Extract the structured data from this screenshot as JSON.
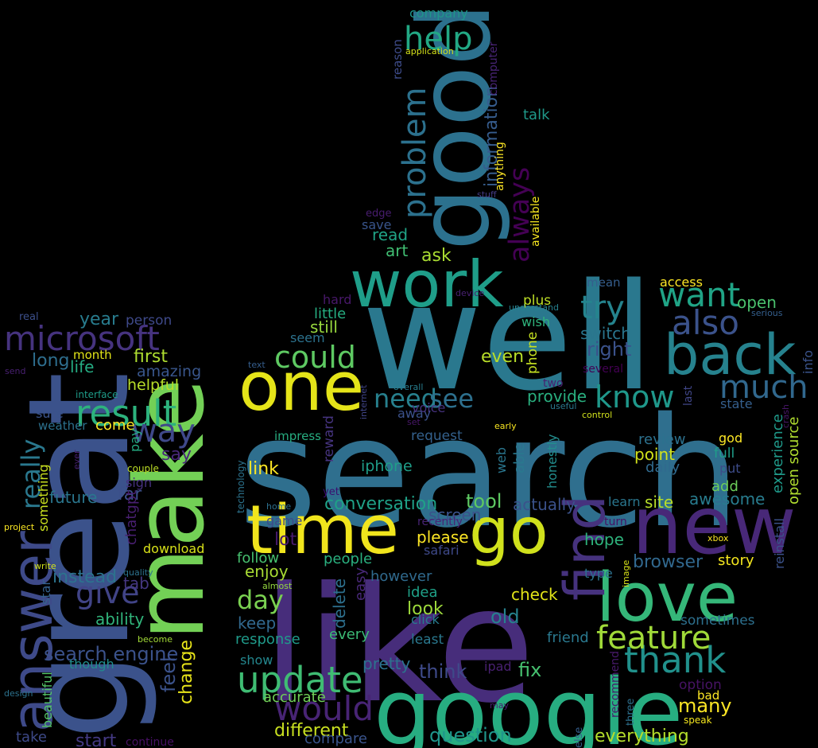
{
  "words": [
    {
      "text": "search",
      "color": "#2f6f8e"
    },
    {
      "text": "well",
      "color": "#2a788e"
    },
    {
      "text": "like",
      "color": "#472d7b"
    },
    {
      "text": "great",
      "color": "#3b528b"
    },
    {
      "text": "good",
      "color": "#2c718e"
    },
    {
      "text": "google",
      "color": "#27ad81"
    },
    {
      "text": "new",
      "color": "#482878"
    },
    {
      "text": "make",
      "color": "#73d056"
    },
    {
      "text": "time",
      "color": "#f1e51d"
    },
    {
      "text": "one",
      "color": "#e5e419"
    },
    {
      "text": "work",
      "color": "#1f9e89"
    },
    {
      "text": "love",
      "color": "#35b779"
    },
    {
      "text": "back",
      "color": "#26828e"
    },
    {
      "text": "answer",
      "color": "#3e4a89"
    },
    {
      "text": "go",
      "color": "#d0e11c"
    },
    {
      "text": "find",
      "color": "#46327e"
    },
    {
      "text": "microsoft",
      "color": "#46337f"
    },
    {
      "text": "result",
      "color": "#2db27d"
    },
    {
      "text": "update",
      "color": "#3fbc73"
    },
    {
      "text": "thank",
      "color": "#21918c"
    },
    {
      "text": "feature",
      "color": "#a0da39"
    },
    {
      "text": "would",
      "color": "#482475"
    },
    {
      "text": "help",
      "color": "#22a884"
    },
    {
      "text": "try",
      "color": "#25848e"
    },
    {
      "text": "want",
      "color": "#20a486"
    },
    {
      "text": "also",
      "color": "#3b528b"
    },
    {
      "text": "could",
      "color": "#5ec962"
    },
    {
      "text": "know",
      "color": "#1f988b"
    },
    {
      "text": "much",
      "color": "#31688e"
    },
    {
      "text": "way",
      "color": "#3f4889"
    },
    {
      "text": "give",
      "color": "#414487"
    },
    {
      "text": "really",
      "color": "#2a788e"
    },
    {
      "text": "problem",
      "color": "#2c718e"
    },
    {
      "text": "always",
      "color": "#440154"
    },
    {
      "text": "need",
      "color": "#27808e"
    },
    {
      "text": "see",
      "color": "#2d708e"
    },
    {
      "text": "day",
      "color": "#7ad151"
    },
    {
      "text": "search engine",
      "color": "#3b528b"
    },
    {
      "text": "information",
      "color": "#365c8d"
    },
    {
      "text": "conversation",
      "color": "#1fa187"
    },
    {
      "text": "question",
      "color": "#1f968b"
    },
    {
      "text": "different",
      "color": "#c8e020"
    },
    {
      "text": "many",
      "color": "#fde725"
    },
    {
      "text": "everything",
      "color": "#b5de2b"
    },
    {
      "text": "year",
      "color": "#287c8e"
    },
    {
      "text": "first",
      "color": "#addc30"
    },
    {
      "text": "long",
      "color": "#2e6e8e"
    },
    {
      "text": "life",
      "color": "#25ab82"
    },
    {
      "text": "amazing",
      "color": "#39568c"
    },
    {
      "text": "helpful",
      "color": "#b8de29"
    },
    {
      "text": "person",
      "color": "#3e4989"
    },
    {
      "text": "month",
      "color": "#e2e418"
    },
    {
      "text": "say",
      "color": "#482878"
    },
    {
      "text": "far",
      "color": "#3c508b"
    },
    {
      "text": "come",
      "color": "#fde725"
    },
    {
      "text": "instead",
      "color": "#2c738e"
    },
    {
      "text": "tab",
      "color": "#453781"
    },
    {
      "text": "ability",
      "color": "#31b57b"
    },
    {
      "text": "future",
      "color": "#2a768e"
    },
    {
      "text": "download",
      "color": "#d8e219"
    },
    {
      "text": "chatgpt",
      "color": "#481f70"
    },
    {
      "text": "feel",
      "color": "#3b528b"
    },
    {
      "text": "change",
      "color": "#e7e419"
    },
    {
      "text": "start",
      "color": "#443983"
    },
    {
      "text": "take",
      "color": "#3e4a89"
    },
    {
      "text": "though",
      "color": "#228c8d"
    },
    {
      "text": "beautiful",
      "color": "#54c568"
    },
    {
      "text": "something",
      "color": "#cae11f"
    },
    {
      "text": "sure",
      "color": "#3a538b"
    },
    {
      "text": "weather",
      "color": "#2c718e"
    },
    {
      "text": "star",
      "color": "#34618d"
    },
    {
      "text": "sign",
      "color": "#46307e"
    },
    {
      "text": "pay",
      "color": "#25ac82"
    },
    {
      "text": "continue",
      "color": "#471063"
    },
    {
      "text": "real",
      "color": "#3c4f8a"
    },
    {
      "text": "send",
      "color": "#482071"
    },
    {
      "text": "interface",
      "color": "#1e9c89"
    },
    {
      "text": "couple",
      "color": "#bddf26"
    },
    {
      "text": "quality",
      "color": "#2c738e"
    },
    {
      "text": "become",
      "color": "#a2da37"
    },
    {
      "text": "project",
      "color": "#fbe723"
    },
    {
      "text": "design",
      "color": "#2c728e"
    },
    {
      "text": "write",
      "color": "#d2e21b"
    },
    {
      "text": "ever",
      "color": "#482173"
    },
    {
      "text": "company",
      "color": "#1f968b"
    },
    {
      "text": "application",
      "color": "#d5e21a"
    },
    {
      "text": "reason",
      "color": "#3e4c8a"
    },
    {
      "text": "computer",
      "color": "#482475"
    },
    {
      "text": "talk",
      "color": "#1f998a"
    },
    {
      "text": "anything",
      "color": "#fde725"
    },
    {
      "text": "available",
      "color": "#f6e620"
    },
    {
      "text": "stuff",
      "color": "#443b84"
    },
    {
      "text": "edge",
      "color": "#481d6f"
    },
    {
      "text": "save",
      "color": "#39558c"
    },
    {
      "text": "read",
      "color": "#20a486"
    },
    {
      "text": "art",
      "color": "#40bd72"
    },
    {
      "text": "ask",
      "color": "#aadc32"
    },
    {
      "text": "hard",
      "color": "#48186a"
    },
    {
      "text": "little",
      "color": "#26ad81"
    },
    {
      "text": "still",
      "color": "#98d83e"
    },
    {
      "text": "seem",
      "color": "#2c728e"
    },
    {
      "text": "plus",
      "color": "#bddf26"
    },
    {
      "text": "wish",
      "color": "#2eb37c"
    },
    {
      "text": "device",
      "color": "#482071"
    },
    {
      "text": "mean",
      "color": "#355e8d"
    },
    {
      "text": "access",
      "color": "#fde725"
    },
    {
      "text": "understand",
      "color": "#26828e"
    },
    {
      "text": "open",
      "color": "#4ac16d"
    },
    {
      "text": "serious",
      "color": "#355f8d"
    },
    {
      "text": "switch",
      "color": "#2a768e"
    },
    {
      "text": "right",
      "color": "#3b528b"
    },
    {
      "text": "even",
      "color": "#b8de29"
    },
    {
      "text": "phone",
      "color": "#c5e021"
    },
    {
      "text": "info",
      "color": "#3a538b"
    },
    {
      "text": "several",
      "color": "#440154"
    },
    {
      "text": "last",
      "color": "#404688"
    },
    {
      "text": "two",
      "color": "#482071"
    },
    {
      "text": "useful",
      "color": "#2a788e"
    },
    {
      "text": "provide",
      "color": "#29af7f"
    },
    {
      "text": "state",
      "color": "#355f8d"
    },
    {
      "text": "experience",
      "color": "#1f9a8a"
    },
    {
      "text": "crash",
      "color": "#481668"
    },
    {
      "text": "control",
      "color": "#d0e11c"
    },
    {
      "text": "early",
      "color": "#f8e621"
    },
    {
      "text": "overall",
      "color": "#287d8e"
    },
    {
      "text": "internet",
      "color": "#404588"
    },
    {
      "text": "away",
      "color": "#3b528b"
    },
    {
      "text": "set",
      "color": "#481769"
    },
    {
      "text": "review",
      "color": "#2c718e"
    },
    {
      "text": "god",
      "color": "#fde725"
    },
    {
      "text": "full",
      "color": "#1f9e89"
    },
    {
      "text": "point",
      "color": "#d2e21b"
    },
    {
      "text": "daily",
      "color": "#306a8e"
    },
    {
      "text": "put",
      "color": "#3e4c8a"
    },
    {
      "text": "add",
      "color": "#6ccd5a"
    },
    {
      "text": "open source",
      "color": "#b0dd2f"
    },
    {
      "text": "awesome",
      "color": "#287c8e"
    },
    {
      "text": "site",
      "color": "#b8de29"
    },
    {
      "text": "learn",
      "color": "#2a768e"
    },
    {
      "text": "turn",
      "color": "#471365"
    },
    {
      "text": "reinstall",
      "color": "#3b528b"
    },
    {
      "text": "hope",
      "color": "#2eb37c"
    },
    {
      "text": "browser",
      "color": "#31688e"
    },
    {
      "text": "story",
      "color": "#f4e61e"
    },
    {
      "text": "type",
      "color": "#2c718e"
    },
    {
      "text": "image",
      "color": "#d8e219"
    },
    {
      "text": "xbox",
      "color": "#fde725"
    },
    {
      "text": "sometimes",
      "color": "#2d708e"
    },
    {
      "text": "friend",
      "color": "#2a788e"
    },
    {
      "text": "option",
      "color": "#471365"
    },
    {
      "text": "bad",
      "color": "#fde725"
    },
    {
      "text": "speak",
      "color": "#f3e51e"
    },
    {
      "text": "recommend",
      "color": "#481a6c"
    },
    {
      "text": "three",
      "color": "#2d708e"
    },
    {
      "text": "else",
      "color": "#355f8d"
    },
    {
      "text": "ipad",
      "color": "#482071"
    },
    {
      "text": "fix",
      "color": "#46c06f"
    },
    {
      "text": "actually",
      "color": "#3b528b"
    },
    {
      "text": "tool",
      "color": "#5ec962"
    },
    {
      "text": "web",
      "color": "#2a768e"
    },
    {
      "text": "able",
      "color": "#2a788e"
    },
    {
      "text": "honestly",
      "color": "#228d8d"
    },
    {
      "text": "request",
      "color": "#34618d"
    },
    {
      "text": "reward",
      "color": "#463480"
    },
    {
      "text": "iphone",
      "color": "#1f9e89"
    },
    {
      "text": "screen",
      "color": "#3b528b"
    },
    {
      "text": "recently",
      "color": "#482475"
    },
    {
      "text": "please",
      "color": "#fde725"
    },
    {
      "text": "safari",
      "color": "#3e4989"
    },
    {
      "text": "check",
      "color": "#e2e418"
    },
    {
      "text": "old",
      "color": "#26828e"
    },
    {
      "text": "idea",
      "color": "#1fa188"
    },
    {
      "text": "look",
      "color": "#9dd93b"
    },
    {
      "text": "click",
      "color": "#287c8e"
    },
    {
      "text": "least",
      "color": "#2a788e"
    },
    {
      "text": "every",
      "color": "#3bbb75"
    },
    {
      "text": "pretty",
      "color": "#2c728e"
    },
    {
      "text": "think",
      "color": "#3e4a89"
    },
    {
      "text": "compare",
      "color": "#3a548c"
    },
    {
      "text": "may",
      "color": "#482071"
    },
    {
      "text": "however",
      "color": "#306a8e"
    },
    {
      "text": "easy",
      "color": "#482878"
    },
    {
      "text": "delete",
      "color": "#2d708e"
    },
    {
      "text": "people",
      "color": "#2ab07f"
    },
    {
      "text": "enjoy",
      "color": "#a8db34"
    },
    {
      "text": "follow",
      "color": "#46c06f"
    },
    {
      "text": "keep",
      "color": "#31688e"
    },
    {
      "text": "response",
      "color": "#1f9a8a"
    },
    {
      "text": "show",
      "color": "#24878e"
    },
    {
      "text": "accurate",
      "color": "#70cf57"
    },
    {
      "text": "lot",
      "color": "#481b6d"
    },
    {
      "text": "game",
      "color": "#3e4a89"
    },
    {
      "text": "home",
      "color": "#2d708e"
    },
    {
      "text": "almost",
      "color": "#95d840"
    },
    {
      "text": "link",
      "color": "#fde725"
    },
    {
      "text": "impress",
      "color": "#27ad81"
    },
    {
      "text": "technology",
      "color": "#2c738e"
    },
    {
      "text": "yet",
      "color": "#3b0f70"
    },
    {
      "text": "text",
      "color": "#355e8d"
    },
    {
      "text": "voice",
      "color": "#46327e"
    }
  ]
}
